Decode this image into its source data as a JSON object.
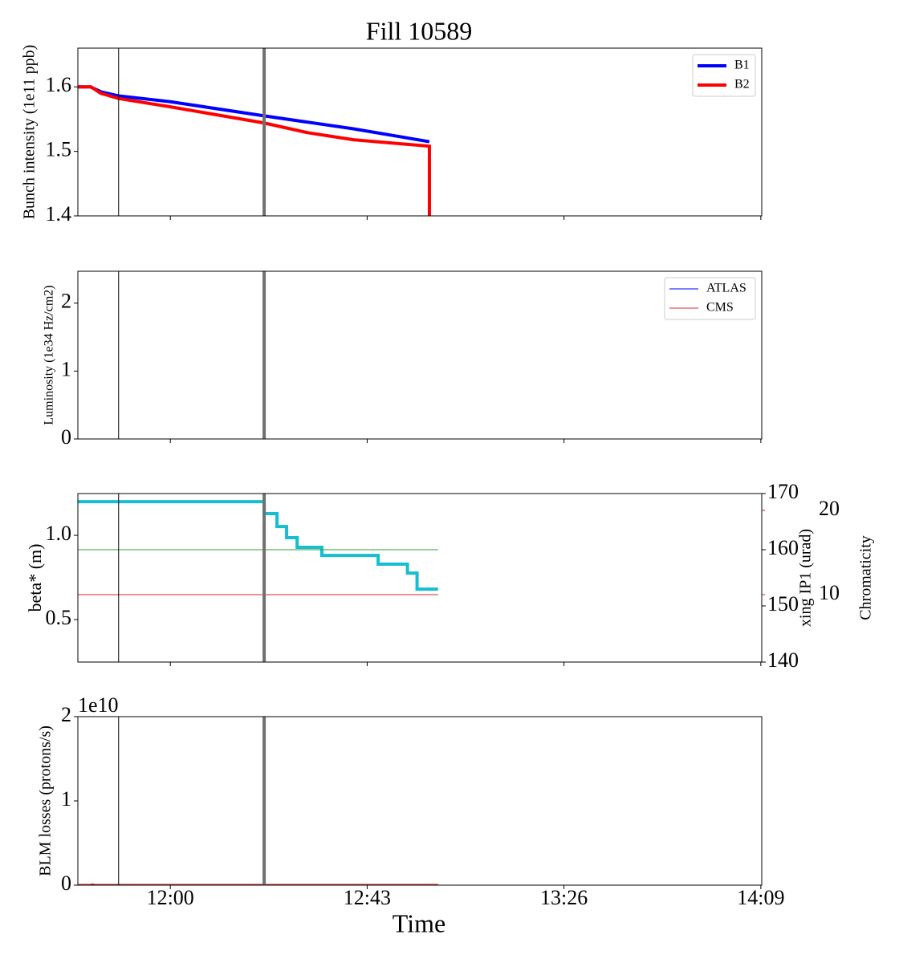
{
  "chart_data": [
    {
      "type": "line",
      "title": "Fill 10589",
      "ylabel": "Bunch intensity (1e11 ppb)",
      "xlim": [
        699.8,
        849.2
      ],
      "xticks": [
        720,
        763,
        806,
        849
      ],
      "ylim": [
        1.4,
        1.66
      ],
      "yticks": [
        1.4,
        1.5,
        1.6
      ],
      "legend": "upper right",
      "vlines": [
        {
          "x": 708.7,
          "color": "#000000",
          "width": 1
        },
        {
          "x": 740.5,
          "color": "#707070",
          "width": 4
        }
      ],
      "series": [
        {
          "name": "B1",
          "color": "#0000ff",
          "width": 4,
          "x": [
            699.8,
            702.5,
            705,
            708.7,
            720,
            740.5,
            760,
            776.6
          ],
          "values": [
            1.6,
            1.6,
            1.592,
            1.586,
            1.577,
            1.555,
            1.535,
            1.515
          ]
        },
        {
          "name": "B2",
          "color": "#ff0000",
          "width": 4,
          "x": [
            699.8,
            702.7,
            704.8,
            708.7,
            720,
            740.5,
            750,
            760,
            776.6,
            776.6
          ],
          "values": [
            1.6,
            1.6,
            1.59,
            1.582,
            1.569,
            1.544,
            1.529,
            1.518,
            1.508,
            1.4
          ]
        }
      ]
    },
    {
      "type": "line",
      "ylabel": "Luminosity (1e34 Hz/cm2)",
      "xlim": [
        699.8,
        849.2
      ],
      "xticks": [
        720,
        763,
        806,
        849
      ],
      "ylim": [
        0,
        2.47
      ],
      "yticks": [
        0,
        1,
        2
      ],
      "legend": "upper right",
      "vlines": [
        {
          "x": 708.7,
          "color": "#000000",
          "width": 1
        },
        {
          "x": 740.5,
          "color": "#707070",
          "width": 4
        }
      ],
      "series": [
        {
          "name": "ATLAS",
          "color": "#0000ff",
          "width": 1,
          "x": [
            699.8,
            776.6
          ],
          "values": [
            0,
            0
          ]
        },
        {
          "name": "CMS",
          "color": "#d62728",
          "width": 1,
          "x": [
            699.8,
            776.6
          ],
          "values": [
            0,
            0
          ]
        }
      ]
    },
    {
      "type": "line",
      "ylabel": "beta* (m)",
      "y2label": "xing IP1 (urad)",
      "y3label": "Chromaticity",
      "ycolor": "#00bfbf",
      "y2color": "#008000",
      "y3color": "#b22222",
      "xlim": [
        699.8,
        849.2
      ],
      "xticks": [
        720,
        763,
        806,
        849
      ],
      "ylim": [
        0.248,
        1.248
      ],
      "yticks": [
        0.5,
        {
          "value": 1,
          "label": "1.0"
        }
      ],
      "y2lim": [
        140,
        170
      ],
      "y2ticks": [
        140,
        150,
        160,
        170
      ],
      "y3lim": [
        2,
        22
      ],
      "y3ticks": [
        10,
        20
      ],
      "vlines": [
        {
          "x": 708.7,
          "color": "#000000",
          "width": 1
        },
        {
          "x": 740.5,
          "color": "#707070",
          "width": 4
        }
      ],
      "series": [
        {
          "color": "#17becf",
          "width": 4,
          "drawstyle": "steps-post",
          "x": [
            699.8,
            740.5,
            743.3,
            745.4,
            747.7,
            753.1,
            765.4,
            771.8,
            773.9,
            778.5
          ],
          "values": [
            1.2,
            1.129,
            1.052,
            0.986,
            0.929,
            0.881,
            0.829,
            0.776,
            0.681,
            0.681
          ]
        },
        {
          "color": "#2ca02c",
          "width": 1,
          "axis": "y2",
          "x": [
            699.8,
            778.5
          ],
          "values": [
            160,
            160
          ]
        },
        {
          "color": "#d62728",
          "width": 1,
          "axis": "y3",
          "x": [
            699.8,
            778.5
          ],
          "values": [
            10,
            10
          ]
        }
      ]
    },
    {
      "type": "line",
      "ylabel": "BLM losses (protons/s)",
      "offset_label": "1e10",
      "xlabel": "Time",
      "xlim": [
        699.8,
        849.2
      ],
      "xticks": [
        {
          "value": 720,
          "label": "12:00"
        },
        {
          "value": 763,
          "label": "12:43"
        },
        {
          "value": 806,
          "label": "13:26"
        },
        {
          "value": 849,
          "label": "14:09"
        }
      ],
      "ylim": [
        0,
        2
      ],
      "yticks": [
        0,
        1,
        2
      ],
      "vlines": [
        {
          "x": 708.7,
          "color": "#000000",
          "width": 1
        },
        {
          "x": 740.5,
          "color": "#707070",
          "width": 4
        }
      ],
      "series": [
        {
          "color": "#d62728",
          "width": 2,
          "x": [
            699.8,
            702.5,
            703,
            703.5,
            778.5
          ],
          "values": [
            0.005,
            0.005,
            0.012,
            0.005,
            0.005
          ]
        }
      ]
    }
  ]
}
